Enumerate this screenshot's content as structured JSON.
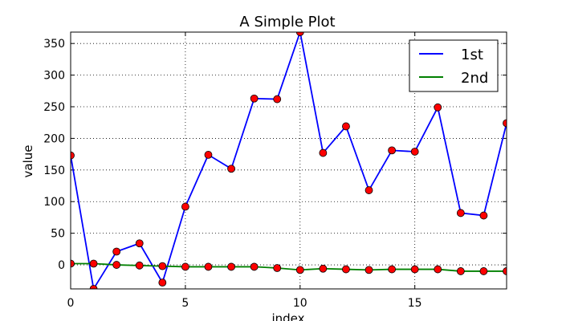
{
  "chart_data": {
    "type": "line",
    "title": "A Simple Plot",
    "xlabel": "index",
    "ylabel": "value",
    "xlim": [
      0,
      19
    ],
    "ylim": [
      -38,
      368
    ],
    "xticks": [
      0,
      5,
      10,
      15
    ],
    "yticks": [
      0,
      50,
      100,
      150,
      200,
      250,
      300,
      350
    ],
    "grid": true,
    "legend_position": "top-right",
    "x": [
      0,
      1,
      2,
      3,
      4,
      5,
      6,
      7,
      8,
      9,
      10,
      11,
      12,
      13,
      14,
      15,
      16,
      17,
      18,
      19
    ],
    "series": [
      {
        "name": "1st",
        "color": "#0000ff",
        "marker_color": "#ff0000",
        "values": [
          173,
          -38,
          21,
          34,
          -28,
          92,
          174,
          152,
          263,
          262,
          368,
          177,
          219,
          118,
          181,
          179,
          249,
          82,
          78,
          224
        ]
      },
      {
        "name": "2nd",
        "color": "#008000",
        "marker_color": "#ff0000",
        "values": [
          2,
          2,
          0,
          -1,
          -2,
          -3,
          -3,
          -3,
          -3,
          -5,
          -8,
          -6,
          -7,
          -8,
          -7,
          -7,
          -7,
          -10,
          -10,
          -10
        ]
      }
    ]
  }
}
